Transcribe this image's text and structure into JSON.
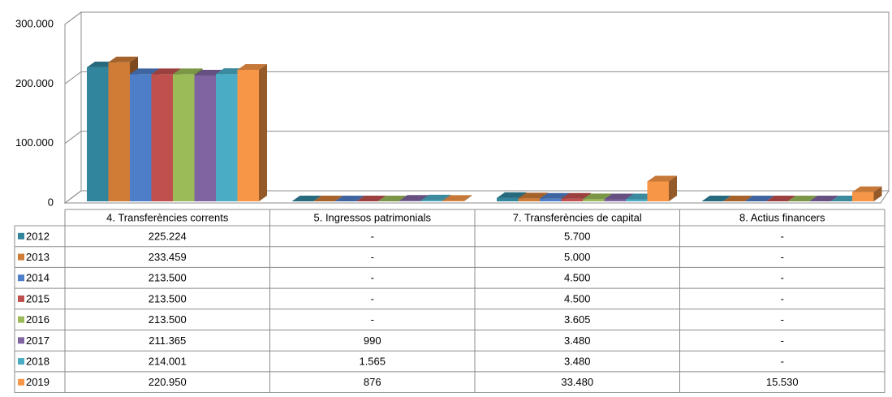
{
  "chart_data": {
    "type": "bar3d",
    "categories": [
      "4. Transferències corrents",
      "5. Ingressos patrimonials",
      "7. Transferències de capital",
      "8. Actius financers"
    ],
    "ylim": [
      0,
      300000
    ],
    "yticks": [
      0,
      {
        "value": 100000,
        "label": "100.000"
      },
      {
        "value": 200000,
        "label": "200.000"
      },
      {
        "value": 300000,
        "label": "300.000"
      }
    ],
    "grid": true,
    "series": [
      {
        "name": "2012",
        "color": "#31859c",
        "values": [
          225224,
          0,
          5700,
          0
        ],
        "value_labels": [
          "225.224",
          "-",
          "5.700",
          "-"
        ]
      },
      {
        "name": "2013",
        "color": "#d07b36",
        "values": [
          233459,
          0,
          5000,
          0
        ],
        "value_labels": [
          "233.459",
          "-",
          "5.000",
          "-"
        ]
      },
      {
        "name": "2014",
        "color": "#4f7ec9",
        "values": [
          213500,
          0,
          4500,
          0
        ],
        "value_labels": [
          "213.500",
          "-",
          "4.500",
          "-"
        ]
      },
      {
        "name": "2015",
        "color": "#c0504d",
        "values": [
          213500,
          0,
          4500,
          0
        ],
        "value_labels": [
          "213.500",
          "-",
          "4.500",
          "-"
        ]
      },
      {
        "name": "2016",
        "color": "#9bbb59",
        "values": [
          213500,
          0,
          3605,
          0
        ],
        "value_labels": [
          "213.500",
          "-",
          "3.605",
          "-"
        ]
      },
      {
        "name": "2017",
        "color": "#8064a2",
        "values": [
          211365,
          990,
          3480,
          0
        ],
        "value_labels": [
          "211.365",
          "990",
          "3.480",
          "-"
        ]
      },
      {
        "name": "2018",
        "color": "#4bacc6",
        "values": [
          214001,
          1565,
          3480,
          0
        ],
        "value_labels": [
          "214.001",
          "1.565",
          "3.480",
          "-"
        ]
      },
      {
        "name": "2019",
        "color": "#f79646",
        "values": [
          220950,
          876,
          33480,
          15530
        ],
        "value_labels": [
          "220.950",
          "876",
          "33.480",
          "15.530"
        ]
      }
    ]
  }
}
